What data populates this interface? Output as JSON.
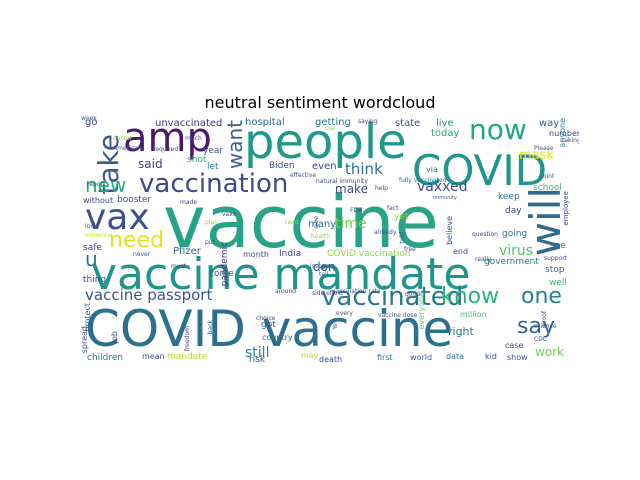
{
  "title": "neutral sentiment wordcloud",
  "words": [
    {
      "text": "vaccine",
      "size": 72,
      "color": "#26a485"
    },
    {
      "text": "vaccine mandate",
      "size": 44,
      "color": "#1f968b"
    },
    {
      "text": "COVID vaccine",
      "size": 50,
      "color": "#2d6f8e"
    },
    {
      "text": "people",
      "size": 48,
      "color": "#1f9a8a"
    },
    {
      "text": "COVID",
      "size": 42,
      "color": "#1f968b"
    },
    {
      "text": "amp",
      "size": 40,
      "color": "#481a6c"
    },
    {
      "text": "will",
      "size": 42,
      "color": "#2f6c8e"
    },
    {
      "text": "vax",
      "size": 36,
      "color": "#3b528b"
    },
    {
      "text": "vaccination",
      "size": 26,
      "color": "#3e4a89"
    },
    {
      "text": "vaccinated",
      "size": 26,
      "color": "#2a788e"
    },
    {
      "text": "now",
      "size": 28,
      "color": "#22a785"
    },
    {
      "text": "take",
      "size": 28,
      "color": "#38598c"
    },
    {
      "text": "need",
      "size": 22,
      "color": "#e5e419"
    },
    {
      "text": "new",
      "size": 20,
      "color": "#29af7f"
    },
    {
      "text": "know",
      "size": 22,
      "color": "#2db27d"
    },
    {
      "text": "one",
      "size": 22,
      "color": "#26828e"
    },
    {
      "text": "say",
      "size": 22,
      "color": "#31688e"
    },
    {
      "text": "want",
      "size": 20,
      "color": "#355f8d"
    },
    {
      "text": "u",
      "size": 20,
      "color": "#2c728e"
    },
    {
      "text": "vaccine passport",
      "size": 15,
      "color": "#39568c"
    },
    {
      "text": "think",
      "size": 15,
      "color": "#2e6f8e"
    },
    {
      "text": "vaxxed",
      "size": 14,
      "color": "#3e4c8a"
    },
    {
      "text": "mask",
      "size": 13,
      "color": "#e2e418"
    },
    {
      "text": "time",
      "size": 14,
      "color": "#7ad151"
    },
    {
      "text": "virus",
      "size": 14,
      "color": "#52c569"
    },
    {
      "text": "still",
      "size": 14,
      "color": "#25848e"
    },
    {
      "text": "work",
      "size": 12,
      "color": "#6ece58"
    },
    {
      "text": "said",
      "size": 12,
      "color": "#433e85"
    },
    {
      "text": "make",
      "size": 12,
      "color": "#3f4889"
    },
    {
      "text": "don",
      "size": 12,
      "color": "#3d4d8a"
    },
    {
      "text": "hospital",
      "size": 10,
      "color": "#31668e"
    },
    {
      "text": "unvaccinated",
      "size": 10,
      "color": "#46327e"
    },
    {
      "text": "getting",
      "size": 10,
      "color": "#2a778e"
    },
    {
      "text": "state",
      "size": 10,
      "color": "#37598c"
    },
    {
      "text": "live",
      "size": 10,
      "color": "#20928c"
    },
    {
      "text": "today",
      "size": 10,
      "color": "#22a884"
    },
    {
      "text": "way",
      "size": 10,
      "color": "#306a8e"
    },
    {
      "text": "number",
      "size": 8,
      "color": "#433d84"
    },
    {
      "text": "anyone",
      "size": 8,
      "color": "#24878e"
    },
    {
      "text": "go",
      "size": 10,
      "color": "#404688"
    },
    {
      "text": "year",
      "size": 9,
      "color": "#3b528b"
    },
    {
      "text": "Biden",
      "size": 9,
      "color": "#3a548c"
    },
    {
      "text": "even",
      "size": 10,
      "color": "#3f4788"
    },
    {
      "text": "let",
      "size": 9,
      "color": "#287c8e"
    },
    {
      "text": "shot",
      "size": 9,
      "color": "#35b779"
    },
    {
      "text": "booster",
      "size": 9,
      "color": "#3b528b"
    },
    {
      "text": "without",
      "size": 8,
      "color": "#404588"
    },
    {
      "text": "school",
      "size": 9,
      "color": "#44bf70"
    },
    {
      "text": "keep",
      "size": 9,
      "color": "#2d718e"
    },
    {
      "text": "day",
      "size": 9,
      "color": "#3f4788"
    },
    {
      "text": "going",
      "size": 9,
      "color": "#2c738e"
    },
    {
      "text": "see",
      "size": 9,
      "color": "#2f6b8e"
    },
    {
      "text": "safe",
      "size": 9,
      "color": "#3f4889"
    },
    {
      "text": "Pfizer",
      "size": 10,
      "color": "#306a8e"
    },
    {
      "text": "India",
      "size": 9,
      "color": "#3f4788"
    },
    {
      "text": "month",
      "size": 8,
      "color": "#3d4e8a"
    },
    {
      "text": "many",
      "size": 10,
      "color": "#2c738e"
    },
    {
      "text": "pandemic",
      "size": 9,
      "color": "#46337f"
    },
    {
      "text": "got",
      "size": 9,
      "color": "#38588c"
    },
    {
      "text": "yet",
      "size": 9,
      "color": "#8fd744"
    },
    {
      "text": "end",
      "size": 8,
      "color": "#3a538b"
    },
    {
      "text": "right",
      "size": 11,
      "color": "#297b8e"
    },
    {
      "text": "government",
      "size": 9,
      "color": "#2c738e"
    },
    {
      "text": "believe",
      "size": 8,
      "color": "#3b528b"
    },
    {
      "text": "stop",
      "size": 9,
      "color": "#34618d"
    },
    {
      "text": "well",
      "size": 9,
      "color": "#3dbc74"
    },
    {
      "text": "thing",
      "size": 9,
      "color": "#404588"
    },
    {
      "text": "come",
      "size": 9,
      "color": "#3b528b"
    },
    {
      "text": "COVID vaccination",
      "size": 9,
      "color": "#8fd744"
    },
    {
      "text": "spread",
      "size": 8,
      "color": "#3d4d8a"
    },
    {
      "text": "job",
      "size": 8,
      "color": "#414487"
    },
    {
      "text": "country",
      "size": 8,
      "color": "#2e6e8e"
    },
    {
      "text": "risk",
      "size": 9,
      "color": "#3e4a89"
    },
    {
      "text": "death",
      "size": 8,
      "color": "#3e4c8a"
    },
    {
      "text": "children",
      "size": 9,
      "color": "#2a788e"
    },
    {
      "text": "mean",
      "size": 8,
      "color": "#3b528b"
    },
    {
      "text": "mandate",
      "size": 9,
      "color": "#b5de2b"
    },
    {
      "text": "may",
      "size": 8,
      "color": "#c2df23"
    },
    {
      "text": "first",
      "size": 8,
      "color": "#2a778e"
    },
    {
      "text": "world",
      "size": 8,
      "color": "#38598c"
    },
    {
      "text": "data",
      "size": 8,
      "color": "#2d708e"
    },
    {
      "text": "kid",
      "size": 8,
      "color": "#3b528b"
    },
    {
      "text": "show",
      "size": 8,
      "color": "#3b528b"
    },
    {
      "text": "case",
      "size": 8,
      "color": "#3e4989"
    },
    {
      "text": "million",
      "size": 8,
      "color": "#4ac16d"
    },
    {
      "text": "protect",
      "size": 8,
      "color": "#31688e"
    },
    {
      "text": "everyone",
      "size": 8,
      "color": "#5ec962"
    },
    {
      "text": "employee",
      "size": 7,
      "color": "#3f4788"
    },
    {
      "text": "support",
      "size": 6,
      "color": "#3d4d8a"
    },
    {
      "text": "via",
      "size": 8,
      "color": "#2c738e"
    },
    {
      "text": "fully vaccinated",
      "size": 6,
      "color": "#31688e"
    },
    {
      "text": "natural immunity",
      "size": 6,
      "color": "#3f4889"
    },
    {
      "text": "effective",
      "size": 6,
      "color": "#3b528b"
    },
    {
      "text": "around",
      "size": 6,
      "color": "#3e4989"
    },
    {
      "text": "vaccine dose",
      "size": 6,
      "color": "#3b528b"
    },
    {
      "text": "vaccination rate",
      "size": 6,
      "color": "#3b528b"
    },
    {
      "text": "side effect",
      "size": 6,
      "color": "#3b528b"
    },
    {
      "text": "issue",
      "size": 6,
      "color": "#3e4a89"
    },
    {
      "text": "Please",
      "size": 6,
      "color": "#3b528b"
    },
    {
      "text": "question",
      "size": 6,
      "color": "#3f4889"
    },
    {
      "text": "science",
      "size": 6,
      "color": "#3b528b"
    },
    {
      "text": "CDC",
      "size": 6,
      "color": "#3e4989"
    },
    {
      "text": "point",
      "size": 6,
      "color": "#3b528b"
    },
    {
      "text": "taking",
      "size": 6,
      "color": "#3e4a89"
    },
    {
      "text": "saying",
      "size": 6,
      "color": "#3e4989"
    },
    {
      "text": "help",
      "size": 6,
      "color": "#3b528b"
    },
    {
      "text": "choice",
      "size": 6,
      "color": "#3e4989"
    },
    {
      "text": "tell",
      "size": 6,
      "color": "#3b528b"
    },
    {
      "text": "already",
      "size": 6,
      "color": "#3b528b"
    },
    {
      "text": "really",
      "size": 6,
      "color": "#3b528b"
    },
    {
      "text": "free",
      "size": 6,
      "color": "#3b528b"
    },
    {
      "text": "plan",
      "size": 6,
      "color": "#8fd744"
    },
    {
      "text": "put",
      "size": 6,
      "color": "#3b528b"
    },
    {
      "text": "must",
      "size": 6,
      "color": "#3e4989"
    },
    {
      "text": "never",
      "size": 6,
      "color": "#3b528b"
    },
    {
      "text": "someone",
      "size": 6,
      "color": "#c2df23"
    },
    {
      "text": "required",
      "size": 6,
      "color": "#3e4a89"
    },
    {
      "text": "American",
      "size": 6,
      "color": "#3b528b"
    },
    {
      "text": "much",
      "size": 6,
      "color": "#3b528b"
    },
    {
      "text": "made",
      "size": 6,
      "color": "#3e4989"
    },
    {
      "text": "look",
      "size": 6,
      "color": "#3b528b"
    },
    {
      "text": "vaxx",
      "size": 6,
      "color": "#3e4989"
    },
    {
      "text": "health",
      "size": 6,
      "color": "#8fd744"
    },
    {
      "text": "give",
      "size": 6,
      "color": "#3e4989"
    },
    {
      "text": "fact",
      "size": 6,
      "color": "#3b528b"
    },
    {
      "text": "FDA",
      "size": 6,
      "color": "#3b528b"
    },
    {
      "text": "use",
      "size": 6,
      "color": "#8fd744"
    },
    {
      "text": "read",
      "size": 6,
      "color": "#8fd744"
    },
    {
      "text": "good",
      "size": 6,
      "color": "#3b528b"
    },
    {
      "text": "back",
      "size": 6,
      "color": "#3b528b"
    },
    {
      "text": "freedom",
      "size": 6,
      "color": "#3e4989"
    },
    {
      "text": "every",
      "size": 6,
      "color": "#3b528b"
    },
    {
      "text": "Ye",
      "size": 6,
      "color": "#3e4989"
    },
    {
      "text": "told",
      "size": 6,
      "color": "#3b528b"
    },
    {
      "text": "proof",
      "size": 6,
      "color": "#3b528b"
    },
    {
      "text": "report",
      "size": 6,
      "color": "#3e4989"
    },
    {
      "text": "immunity",
      "size": 5,
      "color": "#3b528b"
    },
    {
      "text": "doctor",
      "size": 6,
      "color": "#8fd744"
    },
    {
      "text": "week",
      "size": 6,
      "color": "#3b528b"
    }
  ]
}
